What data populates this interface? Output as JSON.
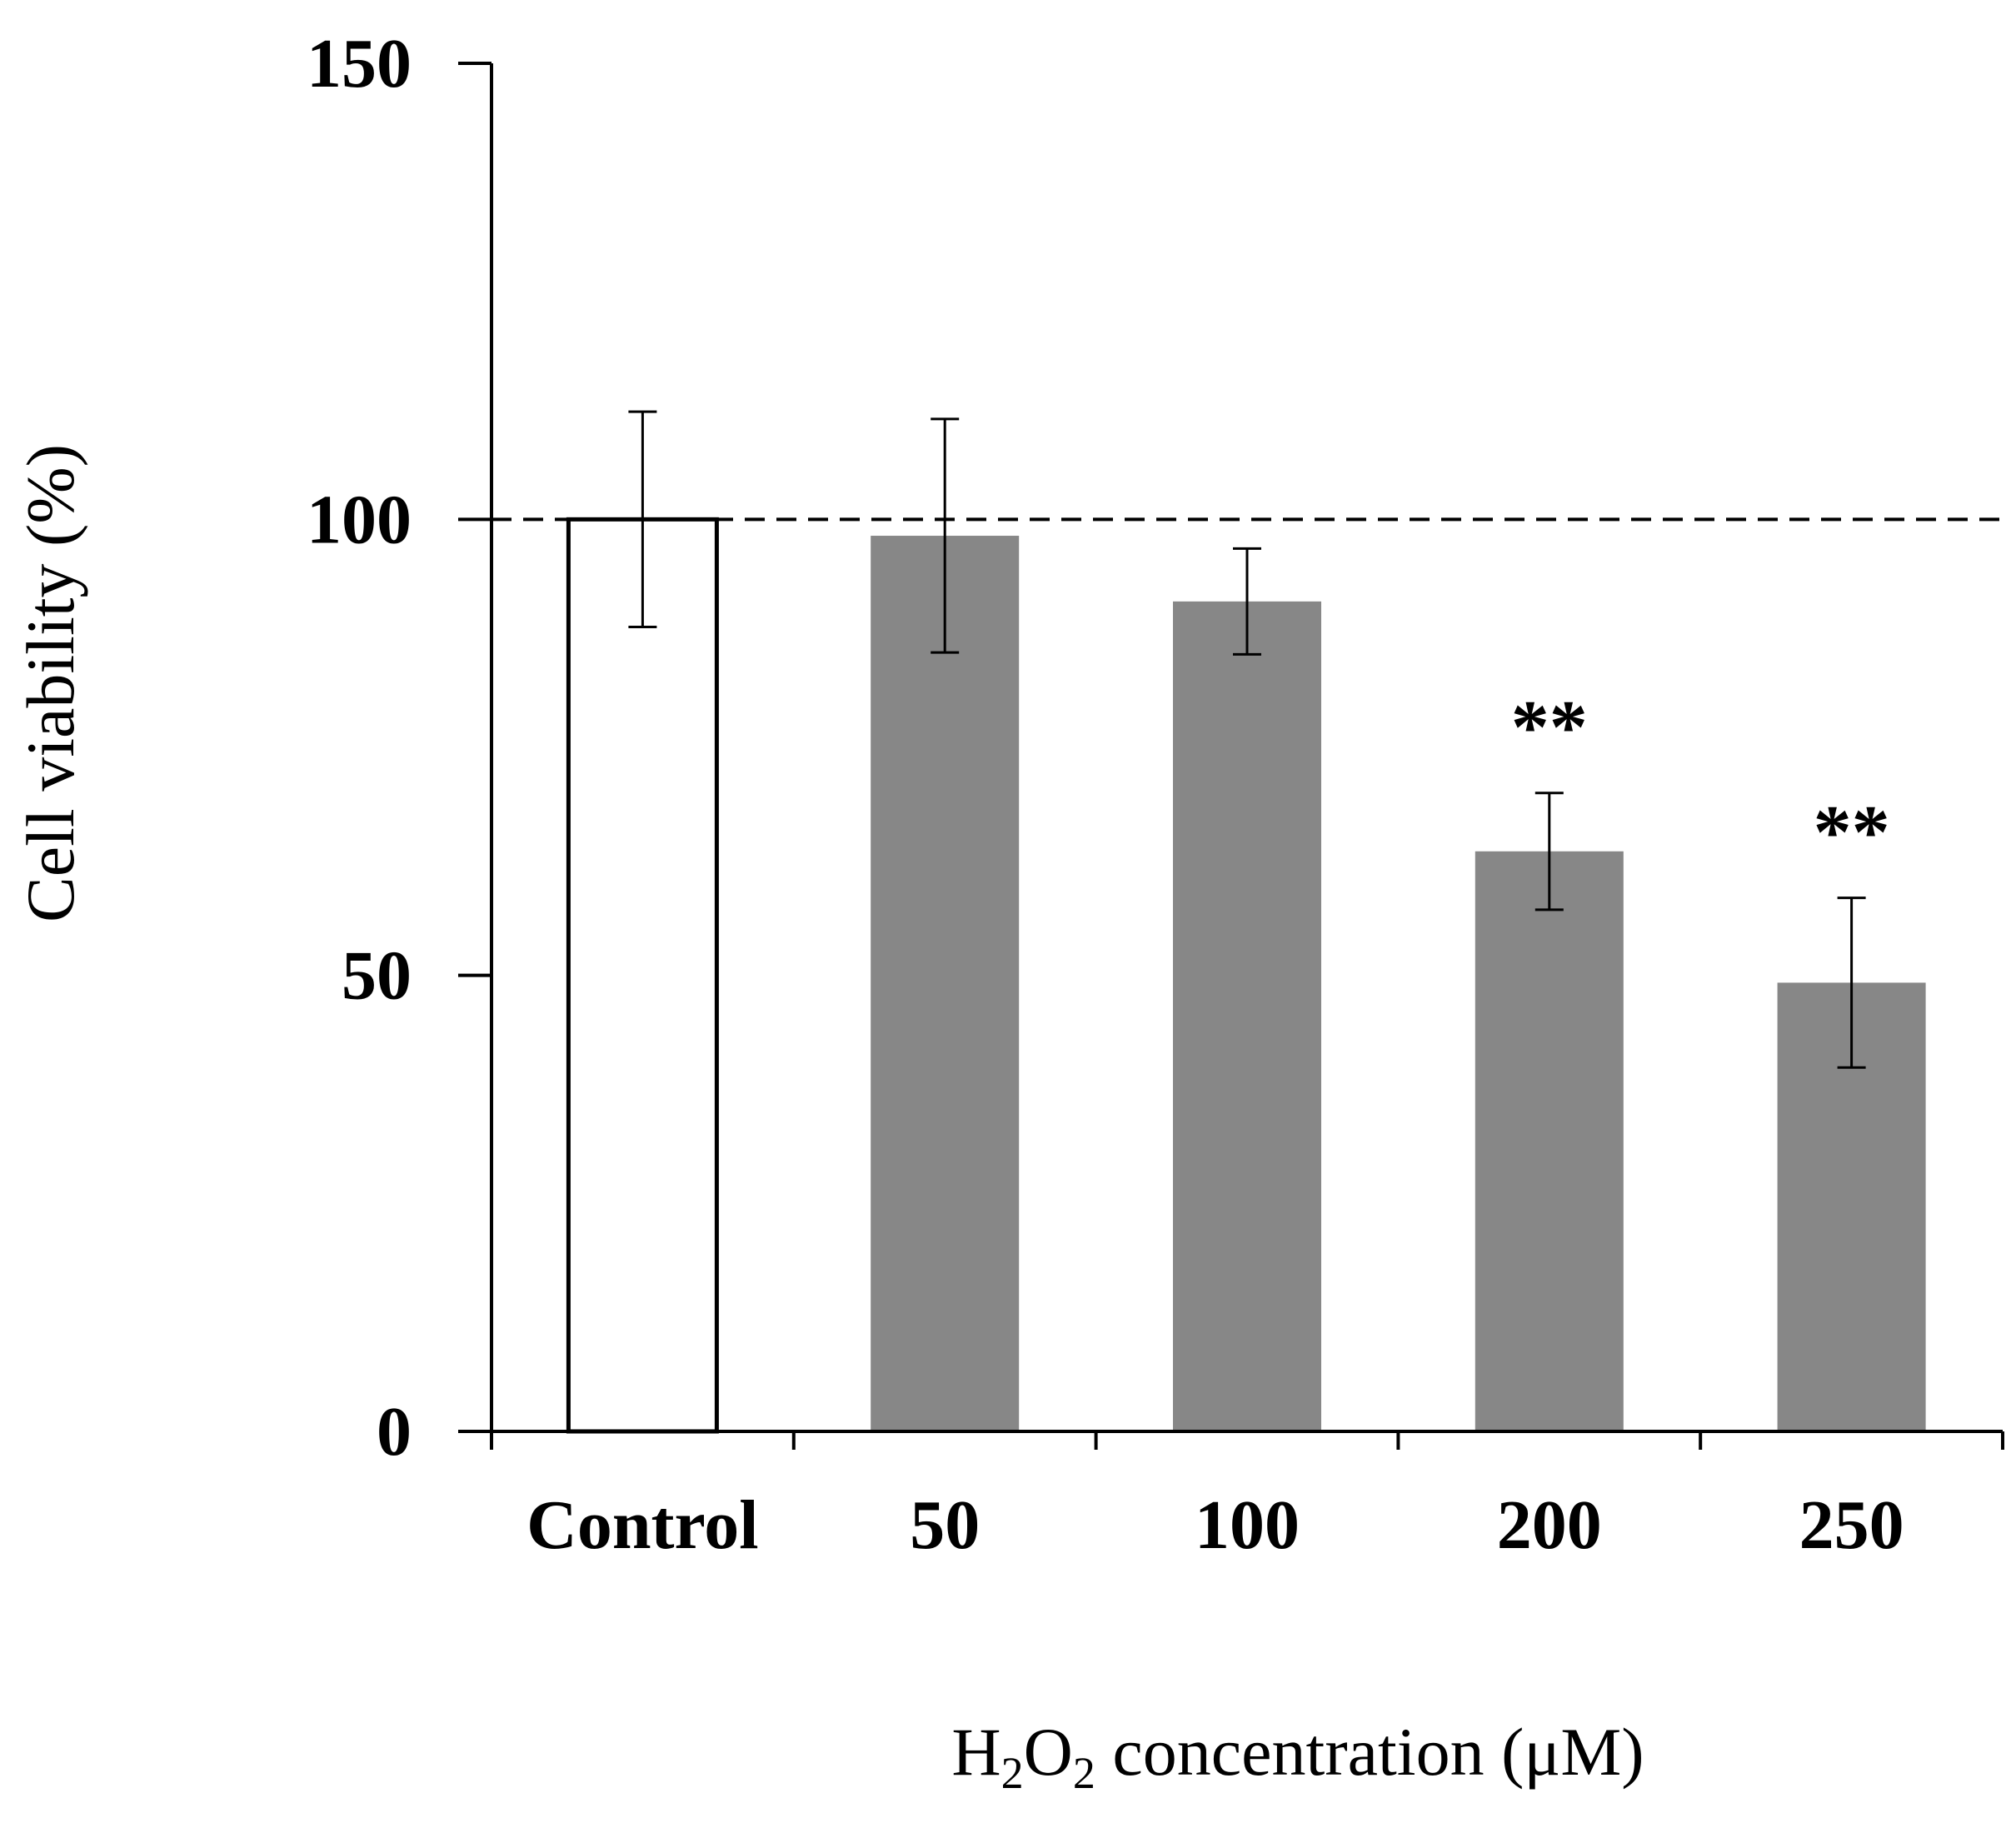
{
  "chart_data": {
    "type": "bar",
    "title": "",
    "xlabel": {
      "parts": [
        "H",
        "2",
        "O",
        "2",
        " concentration (μM)"
      ],
      "subscript_indices": [
        1,
        3
      ]
    },
    "ylabel": "Cell viability (%)",
    "ylim": [
      0,
      150
    ],
    "yticks": [
      "0",
      "50",
      "100",
      "150"
    ],
    "ytick_values": [
      0,
      50,
      100,
      150
    ],
    "grid": false,
    "reference_line": {
      "value": 100,
      "style": "dashed"
    },
    "categories": [
      "Control",
      "50",
      "100",
      "200",
      "250"
    ],
    "values": [
      100,
      98.2,
      91,
      63.6,
      49.2
    ],
    "errors": [
      11.8,
      12.8,
      5.8,
      6.4,
      9.3
    ],
    "significance": [
      "",
      "",
      "",
      "**",
      "**"
    ],
    "bar_fills": [
      "#ffffff",
      "#878787",
      "#878787",
      "#878787",
      "#878787"
    ],
    "bar_strokes": [
      "#000000",
      "none",
      "none",
      "none",
      "none"
    ]
  }
}
